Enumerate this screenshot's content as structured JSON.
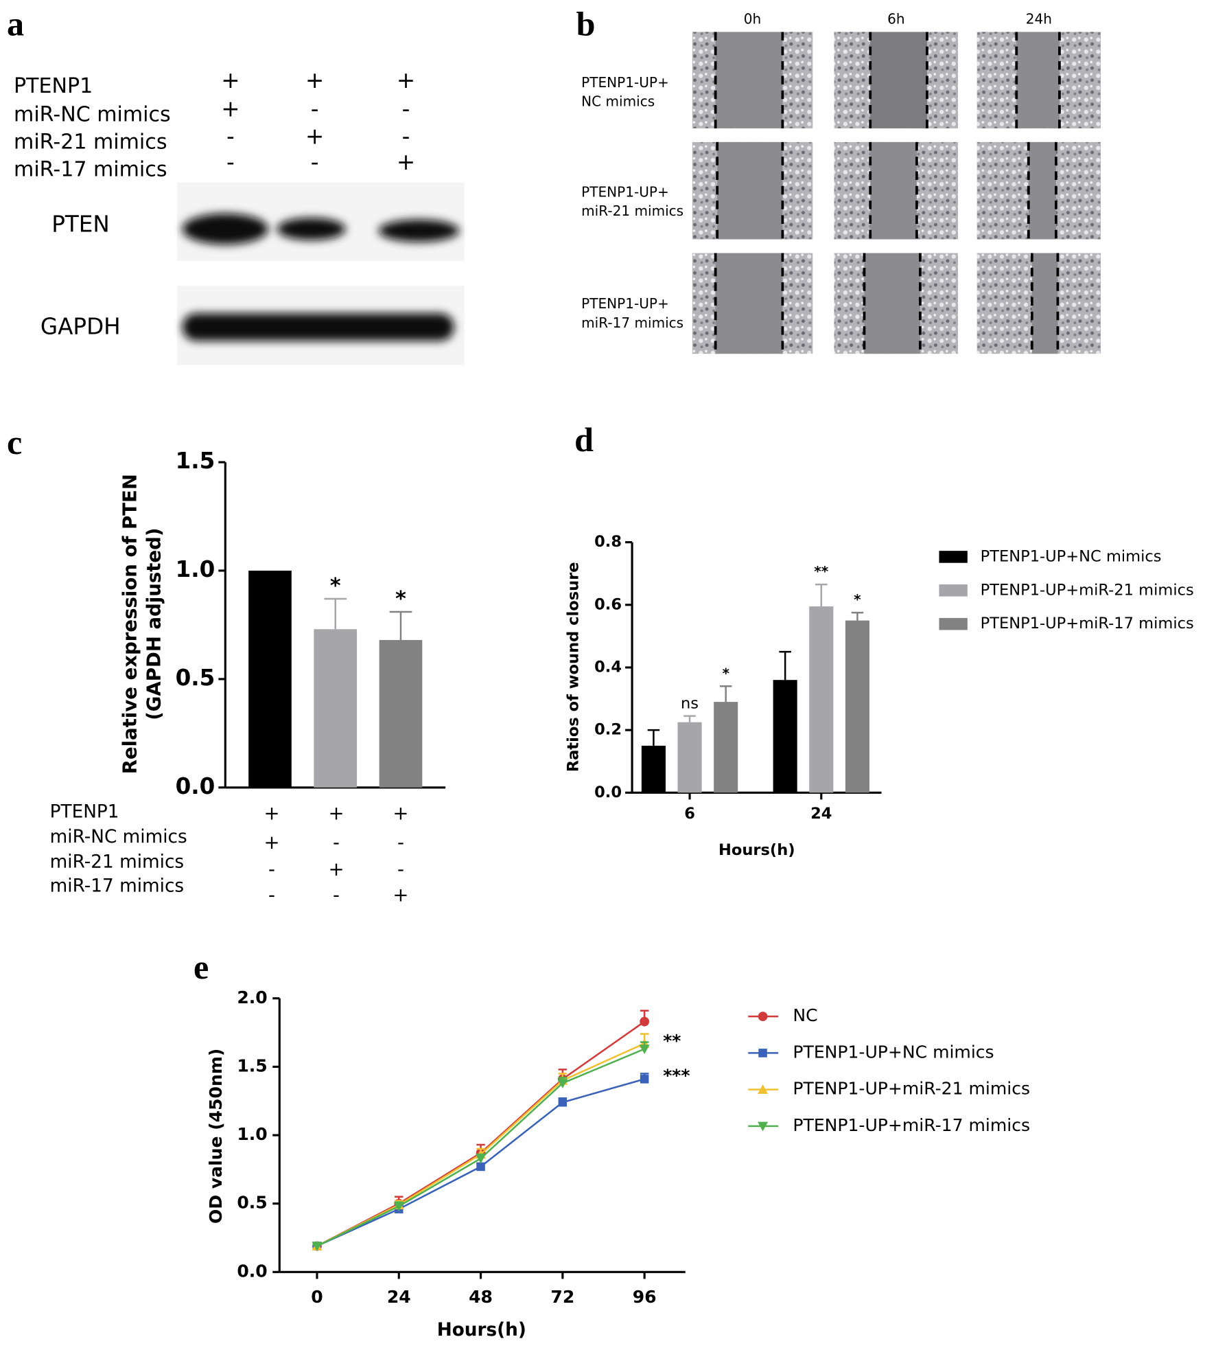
{
  "panel_labels": [
    "a",
    "b",
    "c",
    "d",
    "e"
  ],
  "blot": {
    "conditions": [
      {
        "label": "PTENP1",
        "signs": [
          "+",
          "+",
          "+"
        ]
      },
      {
        "label": "miR-NC mimics",
        "signs": [
          "+",
          "-",
          "-"
        ]
      },
      {
        "label": "miR-21 mimics",
        "signs": [
          "-",
          "+",
          "-"
        ]
      },
      {
        "label": "miR-17 mimics",
        "signs": [
          "-",
          "-",
          "+"
        ]
      }
    ],
    "bands": [
      "PTEN",
      "GAPDH"
    ]
  },
  "wound_images": {
    "columns": [
      "0h",
      "6h",
      "24h"
    ],
    "rows": [
      [
        "PTENP1-UP+",
        "NC mimics"
      ],
      [
        "PTENP1-UP+",
        "miR-21 mimics"
      ],
      [
        "PTENP1-UP+",
        "miR-17 mimics"
      ]
    ]
  },
  "chart_data": [
    {
      "type": "bar",
      "y_label": [
        "Relative  expression of PTEN",
        "(GAPDH adjusted)"
      ],
      "values": [
        1.0,
        0.73,
        0.68
      ],
      "errors": [
        0,
        0.14,
        0.13
      ],
      "annotations": [
        null,
        "*",
        "*"
      ],
      "colors": [
        "#000000",
        "#a6a6aa",
        "#828282"
      ],
      "ylim": [
        0,
        1.5
      ],
      "yticks": [
        {
          "value": 0,
          "label": "0.0"
        },
        0.5,
        {
          "value": 1,
          "label": "1.0"
        },
        1.5
      ],
      "conditions": [
        {
          "label": "PTENP1",
          "signs": [
            "+",
            "+",
            "+"
          ]
        },
        {
          "label": "miR-NC mimics",
          "signs": [
            "+",
            "-",
            "-"
          ]
        },
        {
          "label": "miR-21 mimics",
          "signs": [
            "-",
            "+",
            "-"
          ]
        },
        {
          "label": "miR-17 mimics",
          "signs": [
            "-",
            "-",
            "+"
          ]
        }
      ]
    },
    {
      "type": "bar",
      "x_label": "Hours(h)",
      "y_label": "Ratios of wound closure",
      "categories": [
        "6",
        "24"
      ],
      "series": [
        {
          "name": "PTENP1-UP+NC mimics",
          "color": "#000000",
          "values": [
            0.15,
            0.36
          ],
          "errors": [
            0.05,
            0.09
          ],
          "annotations": [
            null,
            null
          ]
        },
        {
          "name": "PTENP1-UP+miR-21 mimics",
          "color": "#a6a6aa",
          "values": [
            0.225,
            0.595
          ],
          "errors": [
            0.02,
            0.07
          ],
          "annotations": [
            "ns",
            "**"
          ]
        },
        {
          "name": "PTENP1-UP+miR-17 mimics",
          "color": "#828282",
          "values": [
            0.29,
            0.55
          ],
          "errors": [
            0.05,
            0.025
          ],
          "annotations": [
            "*",
            "*"
          ]
        }
      ],
      "ylim": [
        0,
        0.8
      ],
      "yticks": [
        {
          "value": 0,
          "label": "0.0"
        },
        0.2,
        0.4,
        0.6,
        0.8
      ],
      "legend": "right"
    },
    {
      "type": "line",
      "x_label": "Hours(h)",
      "y_label": "OD value (450nm)",
      "x": [
        0,
        24,
        48,
        72,
        96
      ],
      "series": [
        {
          "name": "NC",
          "color": "#d03a3a",
          "marker": "circle",
          "values": [
            0.19,
            0.5,
            0.87,
            1.41,
            1.83
          ],
          "errors": [
            0.01,
            0.05,
            0.06,
            0.07,
            0.08
          ]
        },
        {
          "name": "PTENP1-UP+NC mimics",
          "color": "#3a62b8",
          "marker": "square",
          "values": [
            0.19,
            0.46,
            0.77,
            1.24,
            1.41
          ],
          "errors": [
            0.01,
            0.02,
            0.02,
            0.03,
            0.04
          ]
        },
        {
          "name": "PTENP1-UP+miR-21 mimics",
          "color": "#f0c030",
          "marker": "triangle-up",
          "values": [
            0.19,
            0.49,
            0.86,
            1.4,
            1.67
          ],
          "errors": [
            0.01,
            0.03,
            0.04,
            0.05,
            0.07
          ]
        },
        {
          "name": "PTENP1-UP+miR-17 mimics",
          "color": "#50b050",
          "marker": "triangle-down",
          "values": [
            0.19,
            0.48,
            0.83,
            1.38,
            1.63
          ],
          "errors": [
            0.01,
            0.03,
            0.03,
            0.04,
            0.05
          ]
        }
      ],
      "end_annotations": [
        "**",
        "***"
      ],
      "xlim": [
        -11,
        108
      ],
      "xticks": [
        0,
        24,
        48,
        72,
        96
      ],
      "ylim": [
        0,
        2
      ],
      "yticks": [
        {
          "value": 0,
          "label": "0.0"
        },
        0.5,
        {
          "value": 1,
          "label": "1.0"
        },
        1.5,
        {
          "value": 2,
          "label": "2.0"
        }
      ],
      "legend": "right"
    }
  ]
}
